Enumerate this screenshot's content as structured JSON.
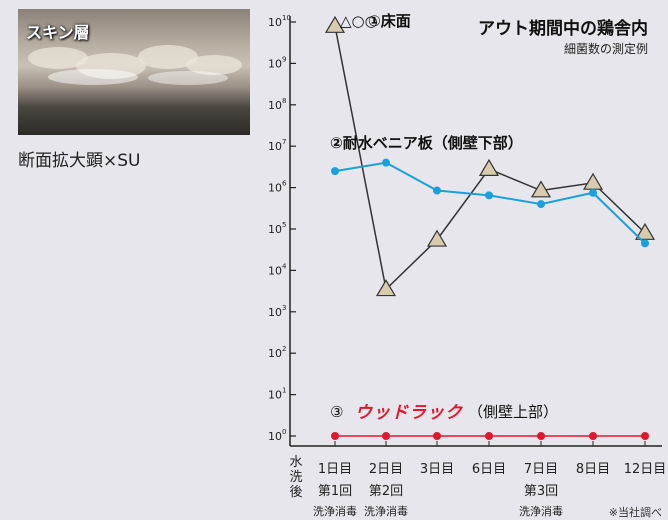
{
  "photo": {
    "label": "スキン層",
    "caption": "断面拡大顕×SU"
  },
  "chart_data": {
    "type": "line",
    "title": "アウト期間中の鶏舎内",
    "subtitle": "細菌数の測定例",
    "note": "※当社調べ",
    "y_scale": "log",
    "ylim": [
      1,
      10000000000
    ],
    "y_ticks": [
      {
        "base": "10",
        "exp": "10",
        "value": 10000000000
      },
      {
        "base": "10",
        "exp": "9",
        "value": 1000000000
      },
      {
        "base": "10",
        "exp": "8",
        "value": 100000000
      },
      {
        "base": "10",
        "exp": "7",
        "value": 10000000
      },
      {
        "base": "10",
        "exp": "6",
        "value": 1000000
      },
      {
        "base": "10",
        "exp": "5",
        "value": 100000
      },
      {
        "base": "10",
        "exp": "4",
        "value": 10000
      },
      {
        "base": "10",
        "exp": "3",
        "value": 1000
      },
      {
        "base": "10",
        "exp": "2",
        "value": 100
      },
      {
        "base": "10",
        "exp": "1",
        "value": 10
      },
      {
        "base": "10",
        "exp": "0",
        "value": 1
      }
    ],
    "x_axis_prefix": "水洗後",
    "categories": [
      "1日目",
      "2日目",
      "3日目",
      "6日目",
      "7日目",
      "8日目",
      "12日目"
    ],
    "category_sublabels": [
      {
        "line1": "第1回",
        "line2": "洗浄消毒"
      },
      {
        "line1": "第2回",
        "line2": "洗浄消毒"
      },
      {
        "line1": "",
        "line2": ""
      },
      {
        "line1": "",
        "line2": ""
      },
      {
        "line1": "第3回",
        "line2": "洗浄消毒"
      },
      {
        "line1": "",
        "line2": ""
      },
      {
        "line1": "",
        "line2": ""
      }
    ],
    "series": [
      {
        "name": "①床面",
        "name_prefix": "",
        "name_suffix": "",
        "symbol_prefix": "△○○",
        "color": "#333333",
        "marker": "triangle",
        "marker_fill": "#d8ccae",
        "values": [
          8000000000,
          3500,
          55000,
          2800000,
          850000,
          1300000,
          80000
        ]
      },
      {
        "name": "②耐水ベニア板（側壁下部）",
        "color": "#1aa0dc",
        "marker": "circle",
        "marker_fill": "#1aa0dc",
        "values": [
          2500000,
          4000000,
          850000,
          650000,
          400000,
          750000,
          45000
        ]
      },
      {
        "name_number": "③",
        "name": "ウッドラック",
        "name_suffix": "（側壁上部）",
        "color": "#e0182d",
        "marker": "circle",
        "marker_fill": "#e0182d",
        "values": [
          1,
          1,
          1,
          1,
          1,
          1,
          1
        ]
      }
    ],
    "legend": "inline-annotations",
    "grid": false,
    "colors": {
      "background": "#e6e6ec",
      "axis": "#222222"
    }
  }
}
